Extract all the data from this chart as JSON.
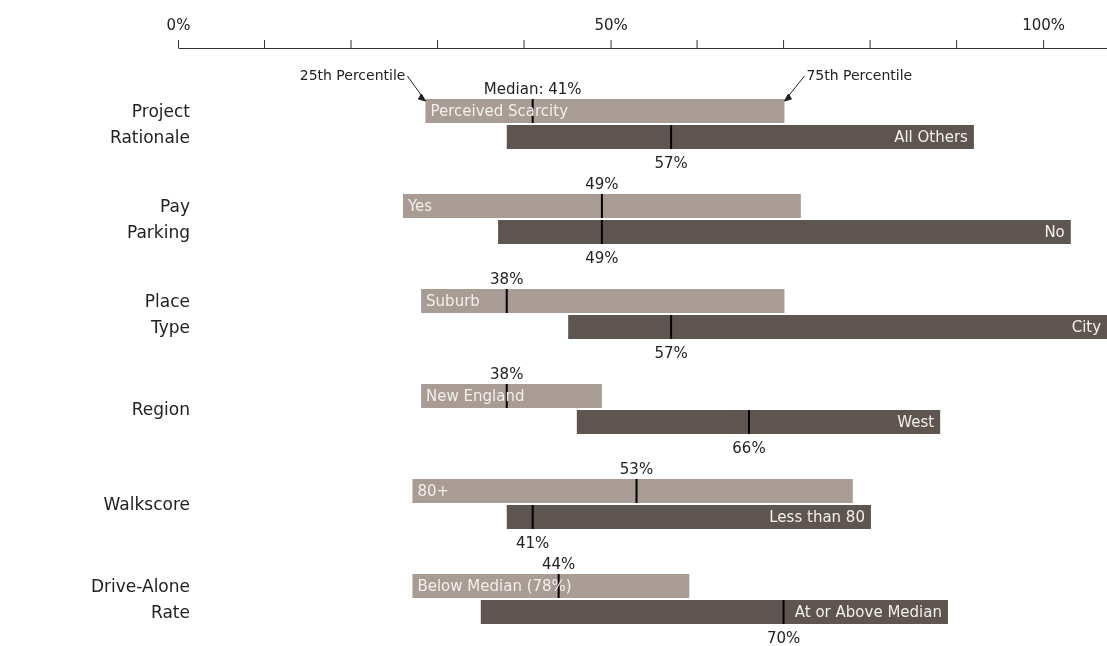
{
  "chart_data": {
    "type": "box",
    "orientation": "horizontal",
    "categories": [
      "Project Rationale",
      "Pay Parking",
      "Place Type",
      "Region",
      "Walkscore",
      "Drive-Alone Rate"
    ],
    "series": [
      {
        "color": "#a89c95",
        "boxes": [
          {
            "low": 28.6,
            "q1": 28.6,
            "median": 41,
            "q3": 70.1,
            "high": 70.1
          },
          {
            "low": 26,
            "q1": 26,
            "median": 49,
            "q3": 72,
            "high": 72
          },
          {
            "low": 28.1,
            "q1": 28.1,
            "median": 38,
            "q3": 70.1,
            "high": 70.1
          },
          {
            "low": 28.1,
            "q1": 28.1,
            "median": 38,
            "q3": 49,
            "high": 49
          },
          {
            "low": 27.1,
            "q1": 27.1,
            "median": 53,
            "q3": 78,
            "high": 78
          },
          {
            "low": 27.1,
            "q1": 27.1,
            "median": 44,
            "q3": 59.1,
            "high": 59.1
          }
        ]
      },
      {
        "color": "#5e5550",
        "boxes": [
          {
            "low": 38,
            "q1": 38,
            "median": 57,
            "q3": 92,
            "high": 92
          },
          {
            "low": 37,
            "q1": 37,
            "median": 49,
            "q3": 103.2,
            "high": 103.2
          },
          {
            "low": 45.1,
            "q1": 45.1,
            "median": 57,
            "q3": 107.4,
            "high": 107.4
          },
          {
            "low": 46.1,
            "q1": 46.1,
            "median": 66,
            "q3": 88.1,
            "high": 88.1
          },
          {
            "low": 38,
            "q1": 38,
            "median": 41,
            "q3": 80.1,
            "high": 80.1
          },
          {
            "low": 35,
            "q1": 35,
            "median": 70,
            "q3": 89,
            "high": 89
          }
        ]
      }
    ],
    "xlim": [
      0,
      107.5
    ],
    "xticks": [
      {
        "value": 0,
        "label": "0%"
      },
      {
        "value": 50,
        "label": "50%"
      },
      {
        "value": 100,
        "label": "100%"
      }
    ],
    "annotations": [
      {
        "text": "Perceived Scarcity",
        "x": 28.6,
        "y": "Project Rationale"
      },
      {
        "text": "All Others",
        "x": 92,
        "y": "Project Rationale"
      },
      {
        "text": "Yes",
        "x": 26,
        "y": "Pay Parking"
      },
      {
        "text": "No",
        "x": 103.2,
        "y": "Pay Parking"
      },
      {
        "text": "Suburb",
        "x": 28.1,
        "y": "Place Type"
      },
      {
        "text": "City",
        "x": 107.4,
        "y": "Place Type"
      },
      {
        "text": "New England",
        "x": 28.1,
        "y": "Region"
      },
      {
        "text": "West",
        "x": 88.1,
        "y": "Region"
      },
      {
        "text": "80+",
        "x": 27.1,
        "y": "Walkscore"
      },
      {
        "text": "Less than 80",
        "x": 80.1,
        "y": "Walkscore"
      },
      {
        "text": "Below Median (78%)",
        "x": 27.1,
        "y": "Drive-Alone Rate"
      },
      {
        "text": "At or Above Median",
        "x": 89,
        "y": "Drive-Alone Rate"
      },
      "25th Percentile",
      "75th Percentile",
      {
        "text": "Median: 41%",
        "x": 41,
        "y": "Project Rationale"
      },
      {
        "text": "57%",
        "x": 57,
        "y": "Project Rationale"
      },
      {
        "text": "49%",
        "x": 49,
        "y": "Pay Parking"
      },
      {
        "text": "49%",
        "x": 49,
        "y": "Pay Parking"
      },
      {
        "text": "38%",
        "x": 38,
        "y": "Place Type"
      },
      {
        "text": "57%",
        "x": 57,
        "y": "Place Type"
      },
      {
        "text": "38%",
        "x": 38,
        "y": "Region"
      },
      {
        "text": "66%",
        "x": 66,
        "y": "Region"
      },
      {
        "text": "53%",
        "x": 53,
        "y": "Walkscore"
      },
      {
        "text": "41%",
        "x": 41,
        "y": "Walkscore"
      },
      {
        "text": "44%",
        "x": 44,
        "y": "Drive-Alone Rate"
      },
      {
        "text": "70%",
        "x": 70,
        "y": "Drive-Alone Rate"
      }
    ]
  }
}
